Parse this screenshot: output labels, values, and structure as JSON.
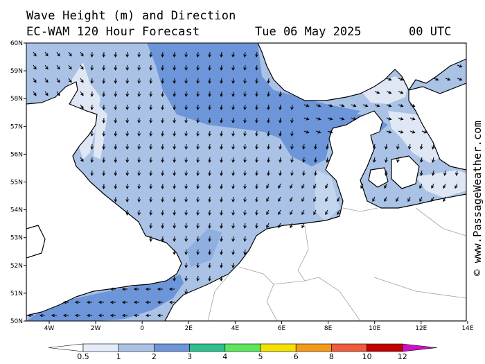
{
  "header": {
    "title": "Wave Height (m) and Direction",
    "model": "EC-WAM 120 Hour Forecast",
    "date": "Tue 06 May 2025",
    "time": "00 UTC"
  },
  "credit": "© www.PassageWeather.com",
  "map_axes": {
    "lon_ticks": [
      "4W",
      "2W",
      "0",
      "2E",
      "4E",
      "6E",
      "8E",
      "10E",
      "12E",
      "14E"
    ],
    "lat_ticks": [
      "60N",
      "59N",
      "58N",
      "57N",
      "56N",
      "55N",
      "54N",
      "53N",
      "52N",
      "51N",
      "50N"
    ]
  },
  "legend": {
    "units": "m",
    "labels": [
      "0.5",
      "1",
      "2",
      "3",
      "4",
      "5",
      "6",
      "8",
      "10",
      "12"
    ],
    "colors": [
      "#e3ecf8",
      "#a9c2e6",
      "#6d95d9",
      "#2fbf8f",
      "#5ce65c",
      "#f5e100",
      "#f59a17",
      "#f15a3c",
      "#c40000",
      "#cc10c4"
    ]
  },
  "map_colors": {
    "sea_0_5": "#ffffff",
    "sea_0_5_1": "#dfe7f5",
    "sea_1_2": "#a9c2e6",
    "sea_2_3": "#6d95d9",
    "coast": "#000000",
    "border": "#a0a0a0"
  },
  "arrows": {
    "dominant_direction": "south"
  }
}
